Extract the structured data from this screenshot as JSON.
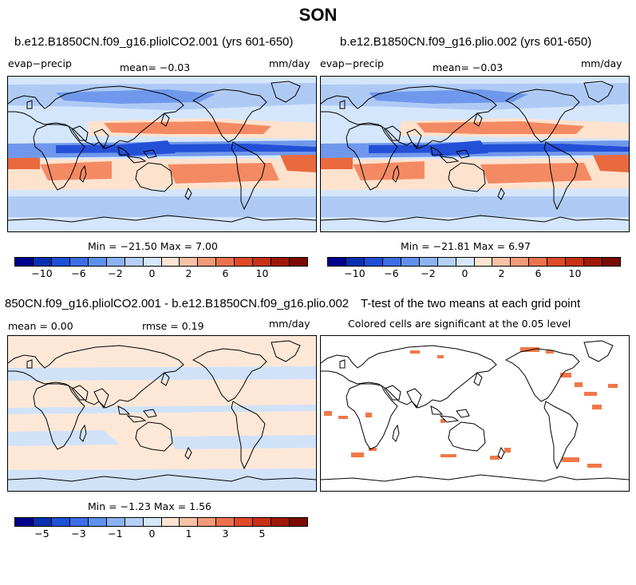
{
  "season": "SON",
  "panels": [
    {
      "title": "b.e12.B1850CN.f09_g16.pliolCO2.001 (yrs 601-650)",
      "left_label": "evap−precip",
      "center_label": "mean=  −0.03",
      "right_label": "mm/day",
      "stats": "Min = −21.50 Max =   7.00"
    },
    {
      "title": "b.e12.B1850CN.f09_g16.plio.002 (yrs 601-650)",
      "left_label": "evap−precip",
      "center_label": "mean=  −0.03",
      "right_label": "mm/day",
      "stats": "Min = −21.81 Max =   6.97"
    },
    {
      "title": "850CN.f09_g16.pliolCO2.001 - b.e12.B1850CN.f09_g16.plio.002",
      "left_label": "mean =   0.00",
      "center_label": "rmse =   0.19",
      "right_label": "mm/day",
      "stats": "Min = −1.23 Max =   1.56"
    },
    {
      "title": "T-test of the two means at each grid point",
      "subtitle": "Colored cells are significant at the 0.05 level"
    }
  ],
  "colorbars": {
    "colors": [
      "#00008b",
      "#0a2fb0",
      "#1e50d8",
      "#3c6ee6",
      "#6090ee",
      "#8cb2f2",
      "#b4cef6",
      "#d6e6fb",
      "#fde4d2",
      "#f8c0a4",
      "#f29a78",
      "#ec724e",
      "#e04a28",
      "#c83014",
      "#a01808",
      "#7a0a02"
    ],
    "main_ticks": [
      "−10",
      "−6",
      "−2",
      "0",
      "2",
      "6",
      "10"
    ],
    "diff_ticks": [
      "−5",
      "−3",
      "−1",
      "0",
      "1",
      "3",
      "5"
    ]
  },
  "map_colors": {
    "ocean": "#d4e6fb",
    "light_blue": "#aecaf4",
    "mid_blue": "#6f98ec",
    "dark_blue": "#2450d8",
    "light_orange": "#fde2ce",
    "orange": "#f48a64",
    "dark_orange": "#ea6a3e",
    "sig": "#f07848",
    "diff_bg": "#fde8d8",
    "diff_blue": "#d0e2f8"
  }
}
